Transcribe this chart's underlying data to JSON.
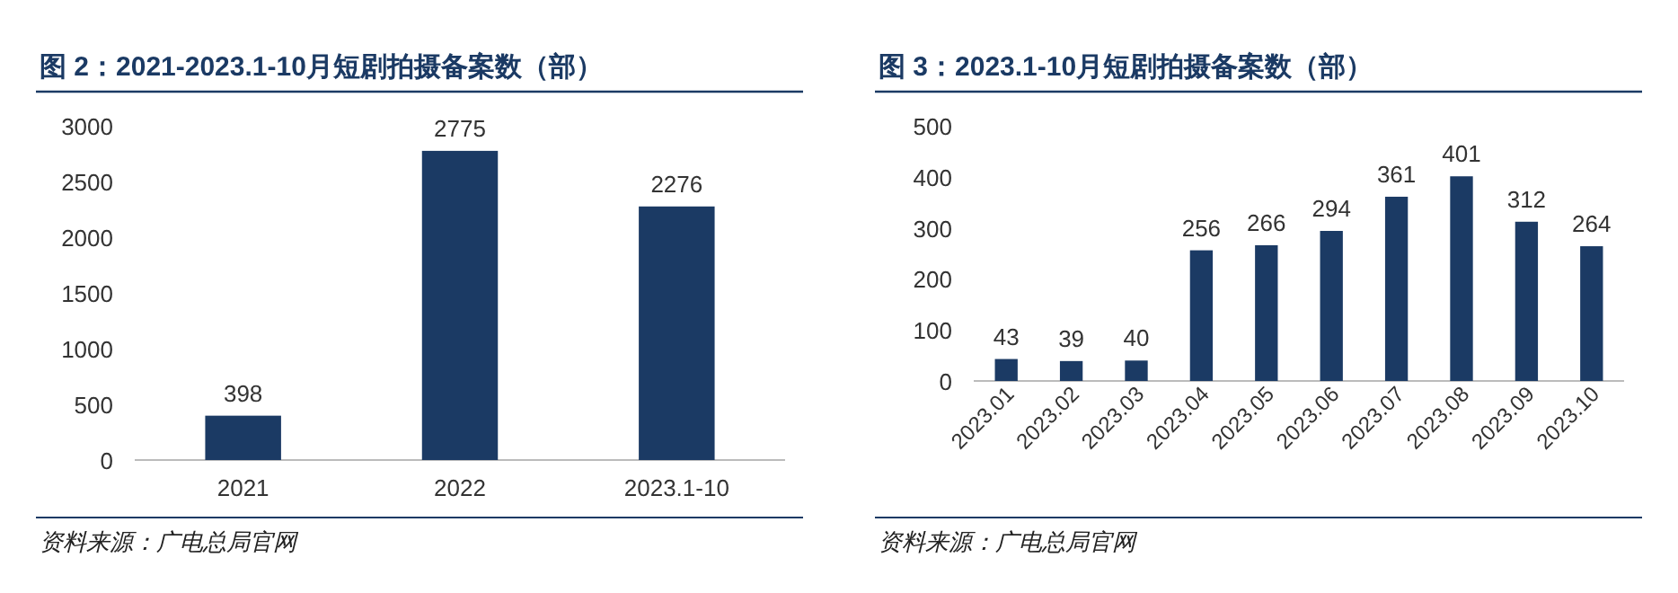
{
  "chart_data": [
    {
      "type": "bar",
      "title": "图 2：2021-2023.1-10月短剧拍摄备案数（部）",
      "categories": [
        "2021",
        "2022",
        "2023.1-10"
      ],
      "values": [
        398,
        2775,
        2276
      ],
      "color": "#1b3a64",
      "ylim": [
        0,
        3000
      ],
      "yticks": [
        0,
        500,
        1000,
        1500,
        2000,
        2500,
        3000
      ],
      "data_labels": true,
      "annotations": [
        "资料来源：广电总局官网"
      ]
    },
    {
      "type": "bar",
      "title": "图 3：2023.1-10月短剧拍摄备案数（部）",
      "categories": [
        "2023.01",
        "2023.02",
        "2023.03",
        "2023.04",
        "2023.05",
        "2023.06",
        "2023.07",
        "2023.08",
        "2023.09",
        "2023.10"
      ],
      "values": [
        43,
        39,
        40,
        256,
        266,
        294,
        361,
        401,
        312,
        264
      ],
      "color": "#1b3a64",
      "ylim": [
        0,
        500
      ],
      "yticks": [
        0,
        100,
        200,
        300,
        400,
        500
      ],
      "data_labels": true,
      "annotations": [
        "资料来源：广电总局官网"
      ]
    }
  ]
}
